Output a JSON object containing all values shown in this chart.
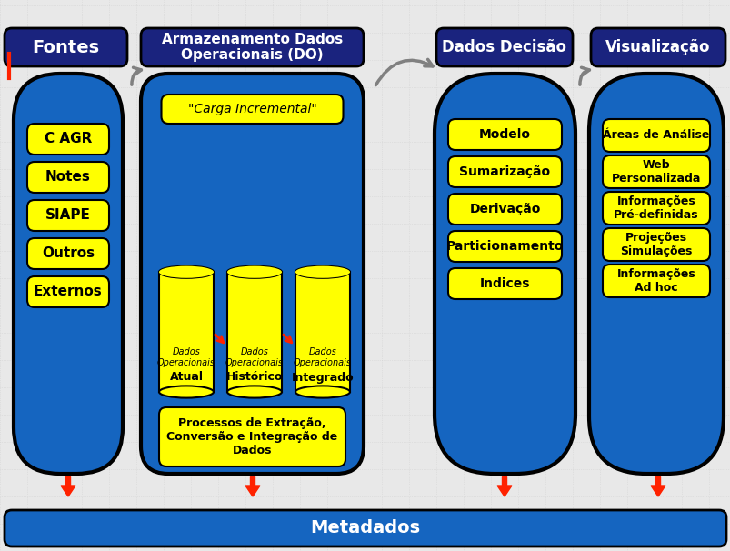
{
  "title_fontes": "Fontes",
  "title_armazenamento": "Armazenamento Dados\nOperacionais (DO)",
  "title_dados_decisao": "Dados Decisão",
  "title_visualizacao": "Visualização",
  "metadados": "Metadados",
  "fontes_items": [
    "C AGR",
    "Notes",
    "SIAPE",
    "Outros",
    "Externos"
  ],
  "carga_incremental": "\"Carga Incremental\"",
  "cilindros": [
    {
      "label_top": "Dados\nOperacionais",
      "label_bot": "Atual"
    },
    {
      "label_top": "Dados\nOperacionais",
      "label_bot": "Histórico"
    },
    {
      "label_top": "Dados\nOperacionais",
      "label_bot": "Integrado"
    }
  ],
  "processos": "Processos de Extração,\nConversão e Integração de\nDados",
  "dados_decisao_items": [
    "Modelo",
    "Sumarização",
    "Derivação",
    "Particionamento",
    "Indices"
  ],
  "visualizacao_items": [
    "Áreas de Análise",
    "Web\nPersonalizada",
    "Informações\nPré-definidas",
    "Projeções\nSimulações",
    "Informações\nAd hoc"
  ],
  "bg_color": "#e8e8e8",
  "header_dark_blue": "#1a237e",
  "pill_blue": "#1565c0",
  "yellow": "#ffff00",
  "red_arrow": "#ff2200",
  "grid_color": "#cccccc",
  "white": "#ffffff",
  "black": "#000000"
}
